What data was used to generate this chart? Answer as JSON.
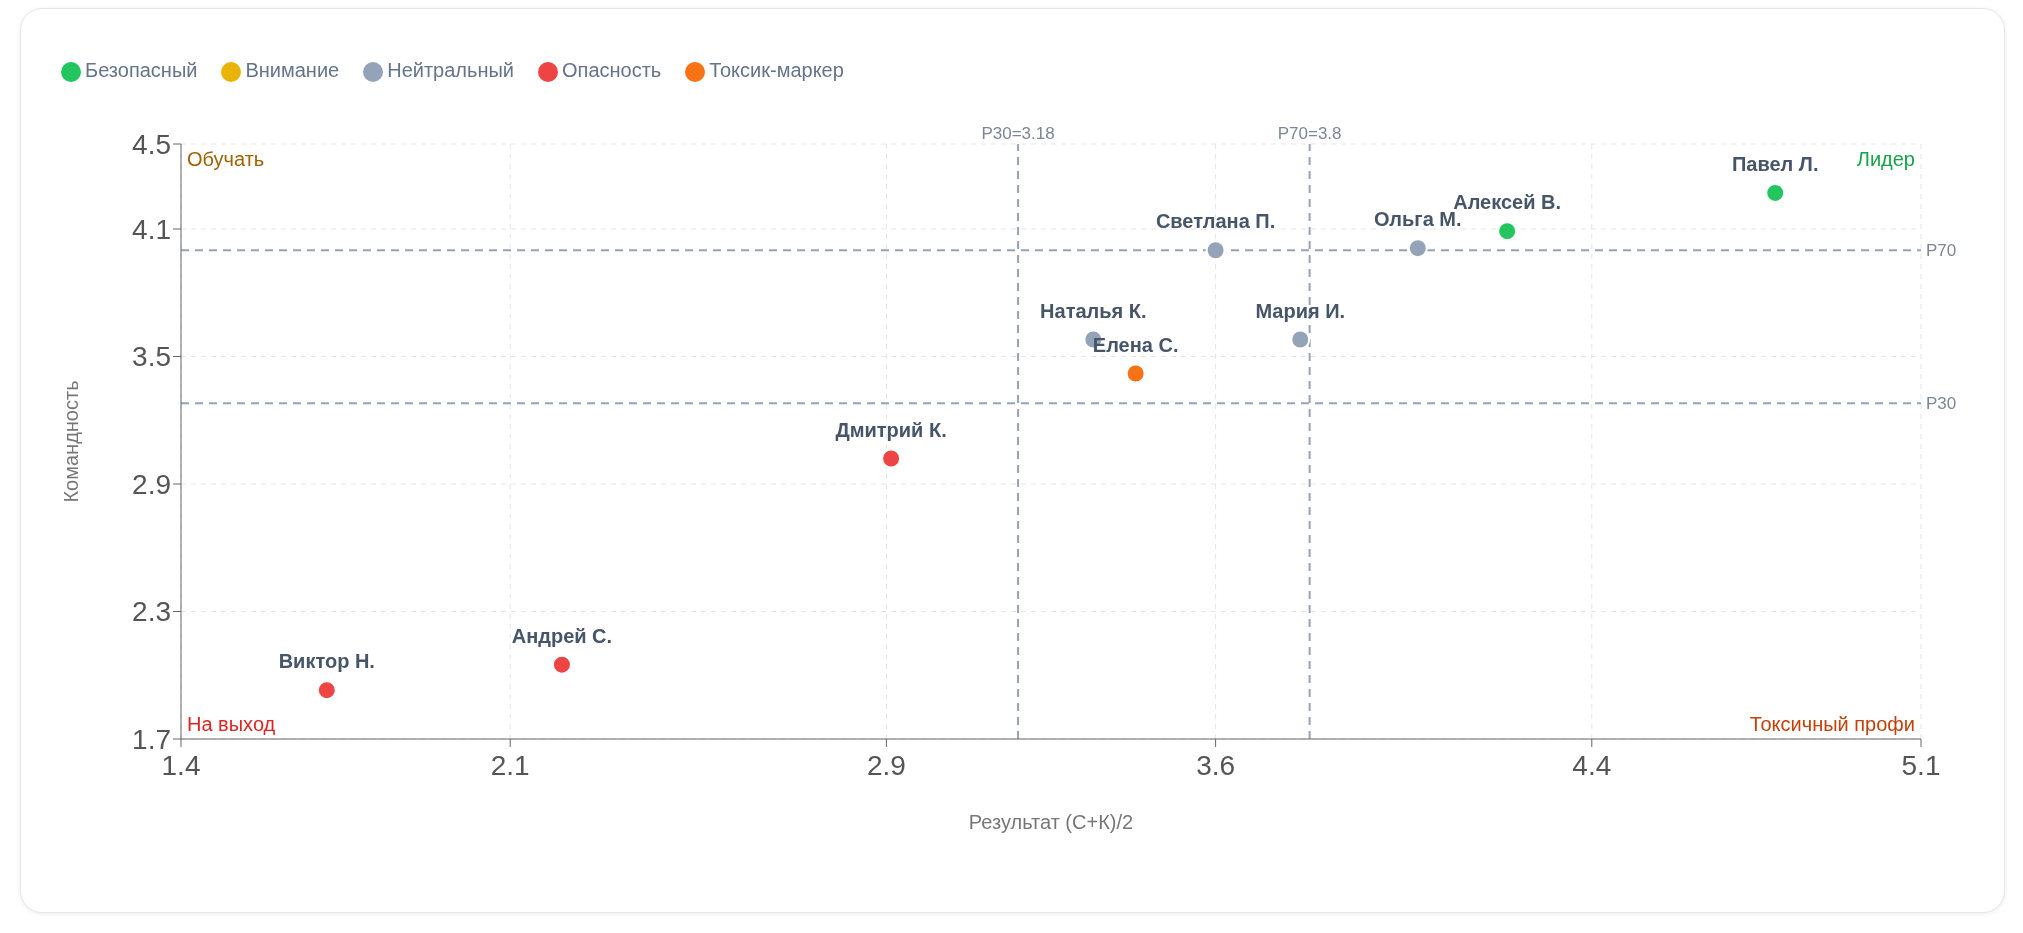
{
  "chart_data": {
    "type": "scatter",
    "xlabel": "Результат (С+К)/2",
    "ylabel": "Командность",
    "xlim": [
      1.4,
      5.1
    ],
    "ylim": [
      1.7,
      4.5
    ],
    "xticks": [
      1.4,
      2.1,
      2.9,
      3.6,
      4.4,
      5.1
    ],
    "yticks": [
      1.7,
      2.3,
      2.9,
      3.5,
      4.1,
      4.5
    ],
    "grid": true,
    "legend": "top left",
    "marker": "circle",
    "series": [
      {
        "name": "Безопасный",
        "color": "#22c55e",
        "x": [
          4.79,
          4.22
        ],
        "values": [
          4.27,
          4.09
        ]
      },
      {
        "name": "Внимание",
        "color": "#eab308"
      },
      {
        "name": "Нейтральный",
        "color": "#94a3b8",
        "x": [
          4.03,
          3.6,
          3.78,
          3.34
        ],
        "values": [
          4.01,
          4.0,
          3.58,
          3.58
        ]
      },
      {
        "name": "Опасность",
        "color": "#ef4444",
        "x": [
          2.91,
          2.21,
          1.71
        ],
        "values": [
          3.02,
          2.05,
          1.93
        ]
      },
      {
        "name": "Токсик-маркер",
        "color": "#f97316",
        "x": [
          3.43
        ],
        "values": [
          3.42
        ]
      }
    ],
    "ref_lines": [
      {
        "axis": "x",
        "value": 3.18,
        "label": "P30=3.18",
        "color": "#94a3b8",
        "line_style": "dashed"
      },
      {
        "axis": "x",
        "value": 3.8,
        "label": "P70=3.8",
        "color": "#94a3b8",
        "line_style": "dashed"
      },
      {
        "axis": "y",
        "value": 4.0,
        "label": "P70",
        "color": "#94a3b8",
        "line_style": "dashed"
      },
      {
        "axis": "y",
        "value": 3.28,
        "label": "P30",
        "color": "#94a3b8",
        "line_style": "dashed"
      }
    ],
    "annotations": [
      "Обучать",
      "Лидер",
      "На выход",
      "Токсичный профи",
      {
        "text": "Павел Л.",
        "x": 4.79,
        "y": 4.27
      },
      {
        "text": "Алексей В.",
        "x": 4.22,
        "y": 4.09
      },
      {
        "text": "Ольга М.",
        "x": 4.03,
        "y": 4.01
      },
      {
        "text": "Светлана П.",
        "x": 3.6,
        "y": 4.0
      },
      {
        "text": "Мария И.",
        "x": 3.78,
        "y": 3.58
      },
      {
        "text": "Наталья К.",
        "x": 3.34,
        "y": 3.58
      },
      {
        "text": "Елена С.",
        "x": 3.43,
        "y": 3.42
      },
      {
        "text": "Дмитрий К.",
        "x": 2.91,
        "y": 3.02
      },
      {
        "text": "Андрей С.",
        "x": 2.21,
        "y": 2.05
      },
      {
        "text": "Виктор Н.",
        "x": 1.71,
        "y": 1.93
      }
    ]
  }
}
